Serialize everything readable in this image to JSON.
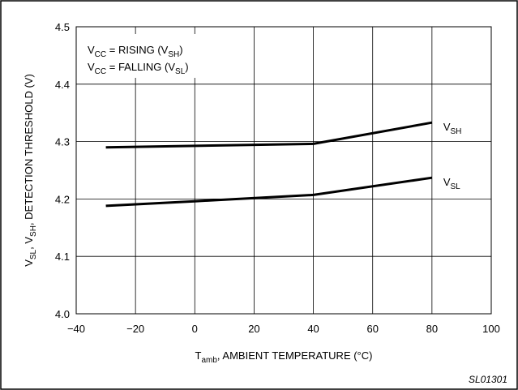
{
  "chart_data": {
    "type": "line",
    "x_axis": {
      "label": "T",
      "label_sub": "amb",
      "label_rest": ", AMBIENT TEMPERATURE (°C)",
      "range": [
        -40,
        100
      ],
      "ticks": [
        -40,
        -20,
        0,
        20,
        40,
        60,
        80,
        100
      ],
      "tick_labels": [
        "−40",
        "−20",
        "0",
        "20",
        "40",
        "60",
        "80",
        "100"
      ]
    },
    "y_axis": {
      "label_parts": [
        {
          "t": "V"
        },
        {
          "t": "SL",
          "sub": true
        },
        {
          "t": ", V"
        },
        {
          "t": "SH",
          "sub": true
        },
        {
          "t": ", DETECTION THRESHOLD (V)"
        }
      ],
      "range": [
        4.0,
        4.5
      ],
      "ticks": [
        4.0,
        4.1,
        4.2,
        4.3,
        4.4,
        4.5
      ],
      "tick_labels": [
        "4.0",
        "4.1",
        "4.2",
        "4.3",
        "4.4",
        "4.5"
      ]
    },
    "grid": true,
    "legend": {
      "placement": "top-left",
      "lines": [
        [
          {
            "t": "V"
          },
          {
            "t": "CC",
            "sub": true
          },
          {
            "t": " = RISING (V"
          },
          {
            "t": "SH",
            "sub": true
          },
          {
            "t": ")"
          }
        ],
        [
          {
            "t": "V"
          },
          {
            "t": "CC",
            "sub": true
          },
          {
            "t": " = FALLING (V"
          },
          {
            "t": "SL",
            "sub": true
          },
          {
            "t": ")"
          }
        ]
      ]
    },
    "series": [
      {
        "name": "V",
        "name_sub": "SH",
        "x": [
          -30,
          40,
          80
        ],
        "y": [
          4.29,
          4.296,
          4.333
        ]
      },
      {
        "name": "V",
        "name_sub": "SL",
        "x": [
          -30,
          0,
          40,
          80
        ],
        "y": [
          4.188,
          4.196,
          4.207,
          4.237
        ]
      }
    ],
    "figure_id": "SL01301"
  }
}
